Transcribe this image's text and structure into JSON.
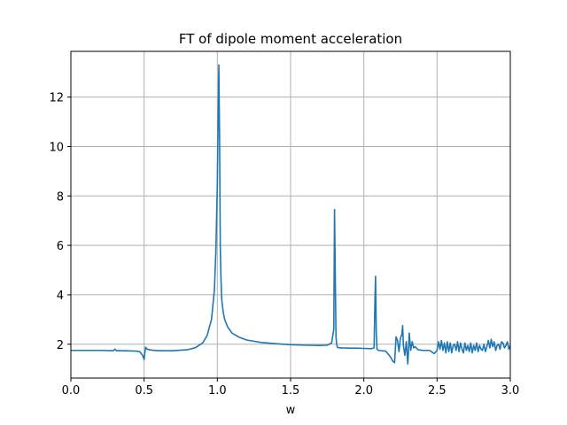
{
  "chart_data": {
    "type": "line",
    "title": "FT of dipole moment acceleration",
    "xlabel": "w",
    "ylabel": "",
    "xlim": [
      0.0,
      3.0
    ],
    "ylim": [
      0.63,
      13.85
    ],
    "grid": true,
    "x_ticks": [
      "0.0",
      "0.5",
      "1.0",
      "1.5",
      "2.0",
      "2.5",
      "3.0"
    ],
    "y_ticks": [
      "2",
      "4",
      "6",
      "8",
      "10",
      "12"
    ],
    "line_color": "#1f77b4",
    "series": [
      {
        "x": [
          0.0,
          0.1,
          0.2,
          0.28,
          0.29,
          0.3,
          0.31,
          0.35,
          0.4,
          0.45,
          0.47,
          0.49,
          0.5,
          0.51,
          0.52,
          0.55,
          0.6,
          0.7,
          0.8,
          0.85,
          0.9,
          0.93,
          0.96,
          0.98,
          0.99,
          1.0,
          1.01,
          1.015,
          1.02,
          1.025,
          1.03,
          1.04,
          1.05,
          1.07,
          1.1,
          1.15,
          1.2,
          1.3,
          1.4,
          1.5,
          1.6,
          1.7,
          1.75,
          1.78,
          1.795,
          1.8,
          1.81,
          1.815,
          1.82,
          1.83,
          1.85,
          1.9,
          1.95,
          2.0,
          2.05,
          2.07,
          2.075,
          2.08,
          2.085,
          2.09,
          2.1,
          2.15,
          2.18,
          2.2,
          2.21,
          2.22,
          2.23,
          2.24,
          2.25,
          2.26,
          2.265,
          2.27,
          2.28,
          2.29,
          2.3,
          2.305,
          2.31,
          2.32,
          2.33,
          2.34,
          2.35,
          2.37,
          2.4,
          2.45,
          2.48,
          2.5,
          2.51,
          2.52,
          2.53,
          2.54,
          2.55,
          2.56,
          2.57,
          2.58,
          2.59,
          2.6,
          2.61,
          2.62,
          2.63,
          2.64,
          2.65,
          2.66,
          2.67,
          2.68,
          2.69,
          2.7,
          2.71,
          2.72,
          2.73,
          2.74,
          2.75,
          2.76,
          2.77,
          2.78,
          2.79,
          2.8,
          2.81,
          2.82,
          2.83,
          2.84,
          2.85,
          2.86,
          2.87,
          2.88,
          2.89,
          2.9,
          2.91,
          2.92,
          2.93,
          2.94,
          2.95,
          2.96,
          2.97,
          2.98,
          2.99,
          3.0
        ],
        "y": [
          1.75,
          1.75,
          1.75,
          1.74,
          1.74,
          1.8,
          1.74,
          1.74,
          1.73,
          1.72,
          1.7,
          1.55,
          1.38,
          1.88,
          1.8,
          1.76,
          1.74,
          1.74,
          1.78,
          1.86,
          2.05,
          2.35,
          3.0,
          4.2,
          5.8,
          8.5,
          13.3,
          10.5,
          6.0,
          4.6,
          3.8,
          3.3,
          3.0,
          2.7,
          2.45,
          2.28,
          2.17,
          2.07,
          2.02,
          1.98,
          1.96,
          1.95,
          1.96,
          2.05,
          2.6,
          7.45,
          2.3,
          2.0,
          1.87,
          1.86,
          1.85,
          1.84,
          1.84,
          1.83,
          1.82,
          1.85,
          3.5,
          4.75,
          2.5,
          1.8,
          1.75,
          1.72,
          1.5,
          1.3,
          1.25,
          2.3,
          2.15,
          1.7,
          2.25,
          2.4,
          2.75,
          1.95,
          1.55,
          2.1,
          1.2,
          1.7,
          2.45,
          1.75,
          2.1,
          1.85,
          1.9,
          1.78,
          1.75,
          1.75,
          1.62,
          1.75,
          2.1,
          1.8,
          2.15,
          1.75,
          2.05,
          1.65,
          2.1,
          1.7,
          2.05,
          1.65,
          1.95,
          2.0,
          1.75,
          2.1,
          1.7,
          2.05,
          1.8,
          1.65,
          2.05,
          1.75,
          1.95,
          1.7,
          2.05,
          1.65,
          1.95,
          1.75,
          2.05,
          1.7,
          1.95,
          1.8,
          1.75,
          2.0,
          1.7,
          1.9,
          2.15,
          1.85,
          2.2,
          1.9,
          2.1,
          1.75,
          1.95,
          2.0,
          1.8,
          2.1,
          2.05,
          1.85,
          1.95,
          2.1,
          1.8,
          1.95
        ]
      }
    ]
  }
}
